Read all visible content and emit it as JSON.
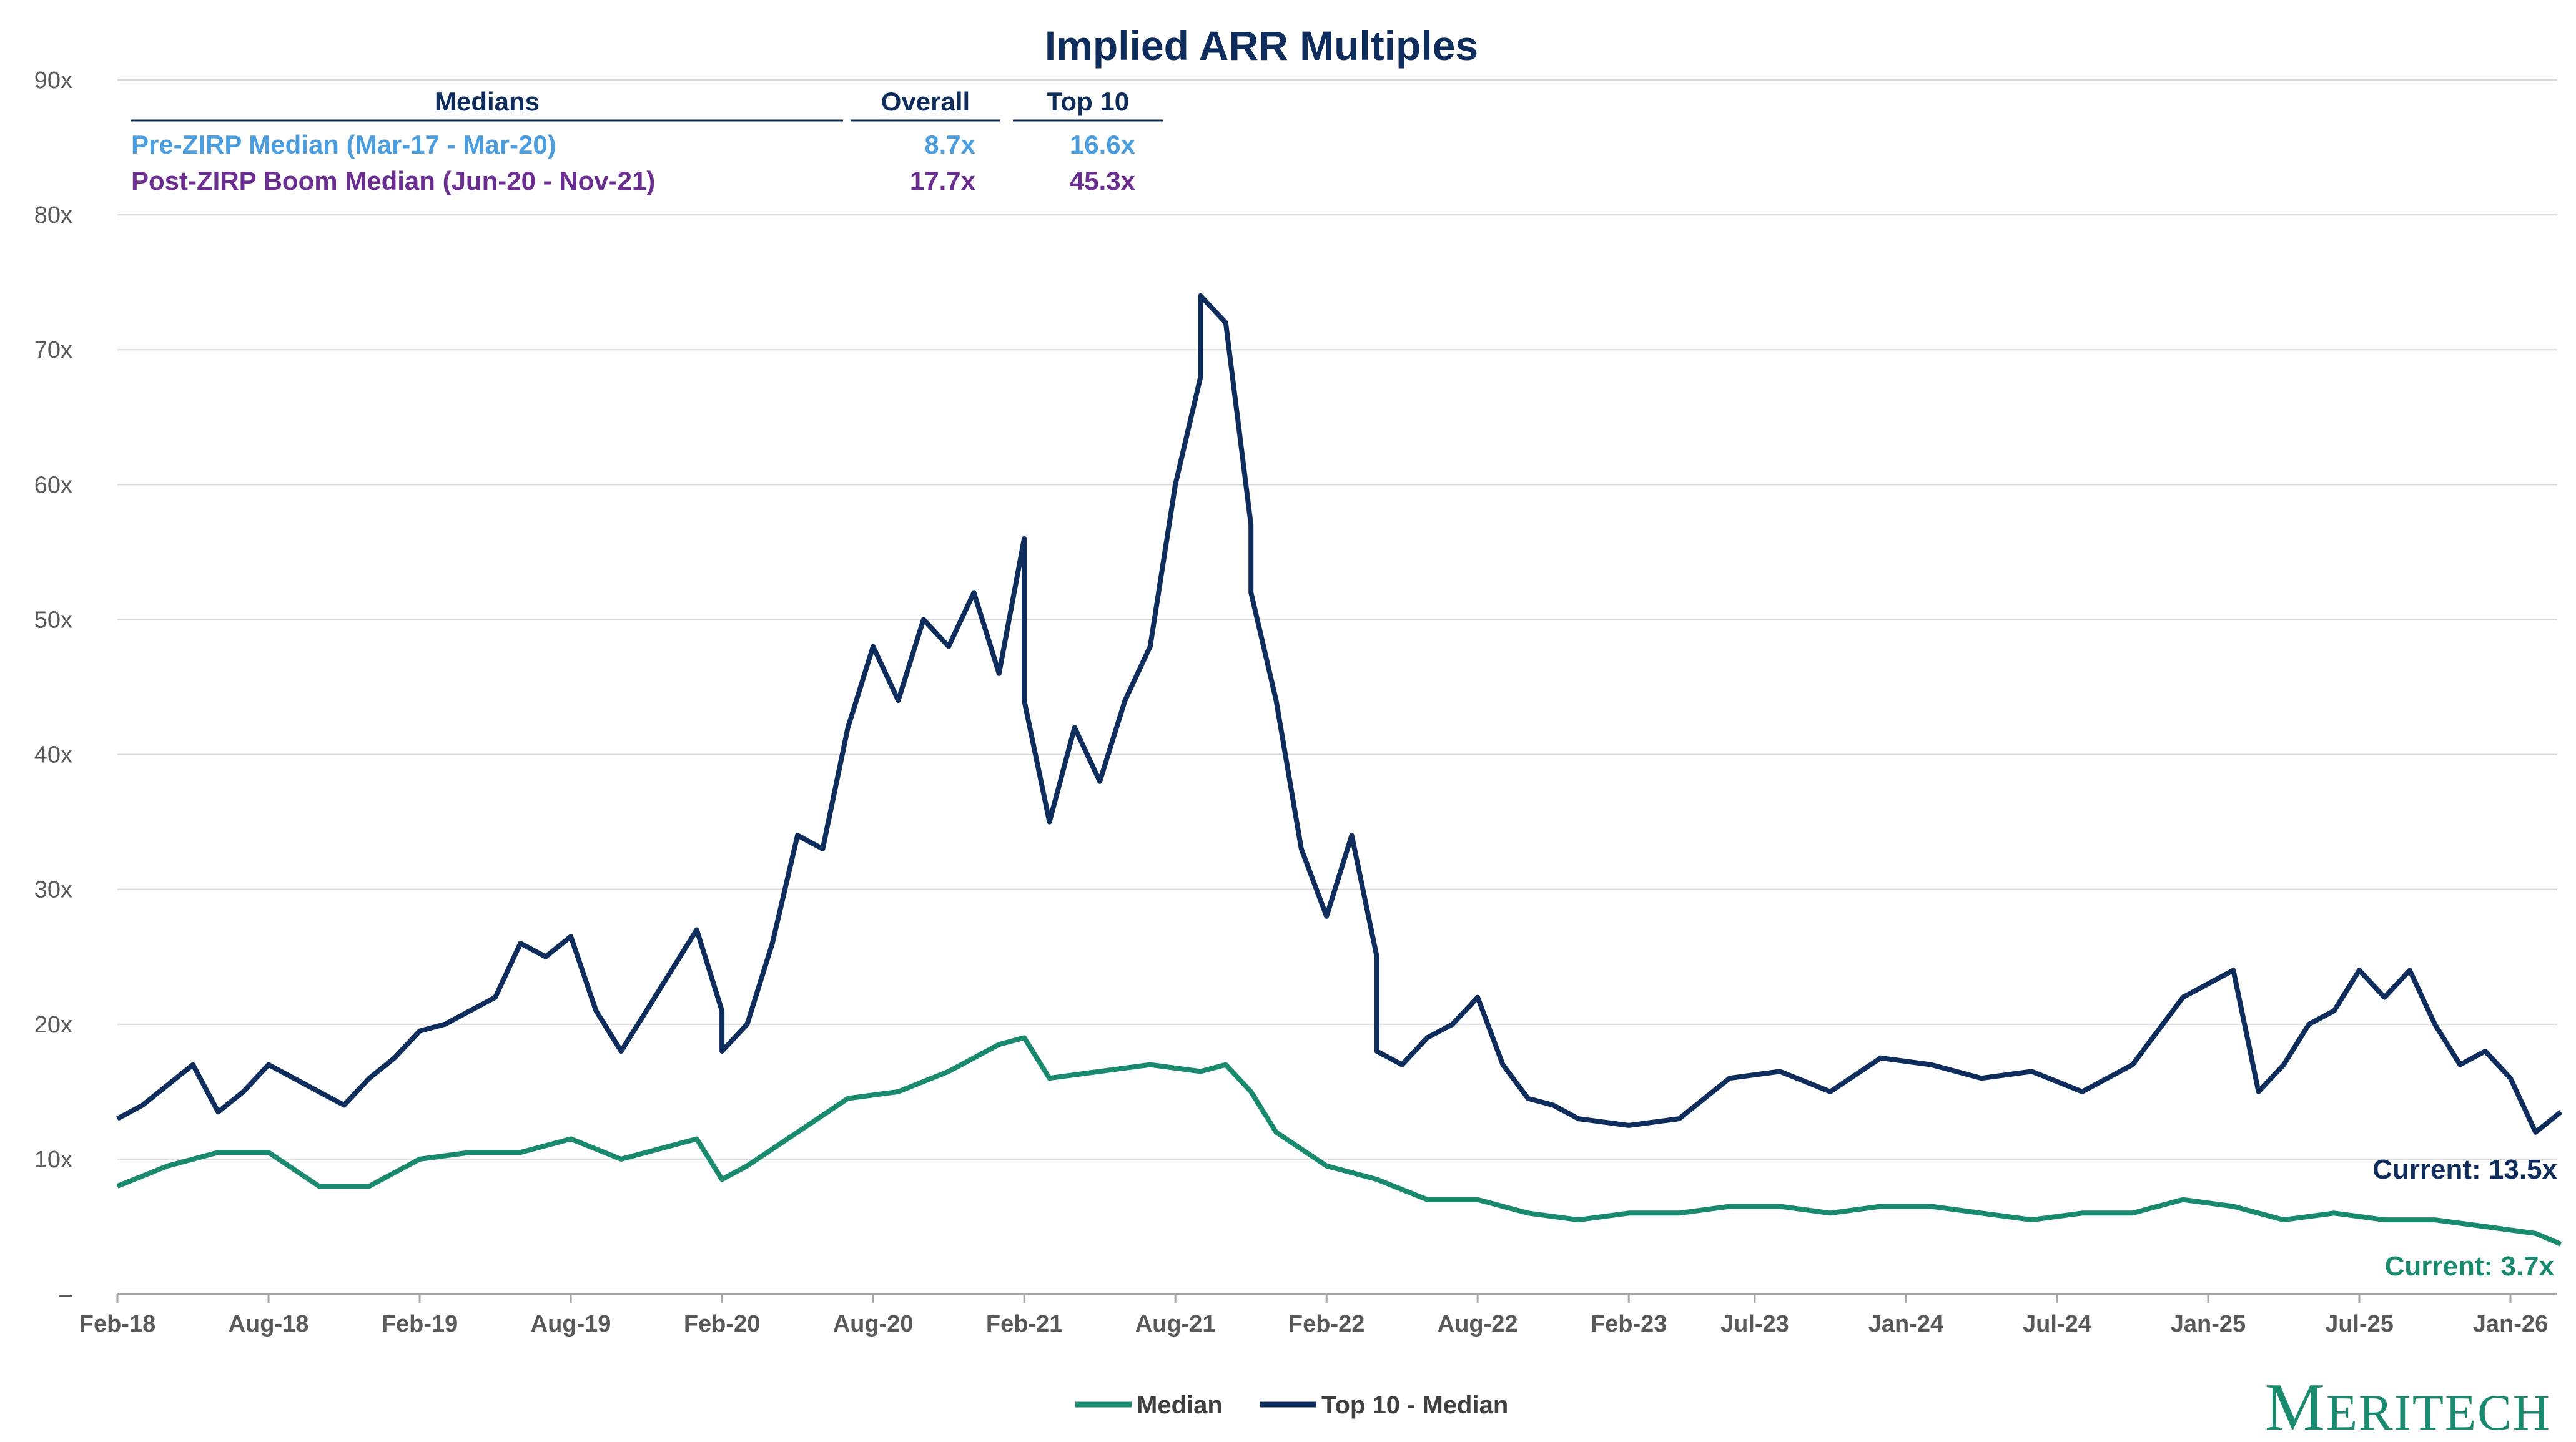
{
  "chart_data": {
    "type": "line",
    "title": "Implied ARR Multiples",
    "y_ticks": [
      "–",
      "10x",
      "20x",
      "30x",
      "40x",
      "50x",
      "60x",
      "70x",
      "80x",
      "90x"
    ],
    "ylim": [
      0,
      90
    ],
    "x_ticks": [
      "Feb-18",
      "Aug-18",
      "Feb-19",
      "Aug-19",
      "Feb-20",
      "Aug-20",
      "Feb-21",
      "Aug-21",
      "Feb-22",
      "Aug-22",
      "Feb-23",
      "Jul-23",
      "Jan-24",
      "Jul-24",
      "Jan-25",
      "Jul-25",
      "Jan-26"
    ],
    "grid": "horizontal",
    "legend_position": "bottom-center",
    "series": [
      {
        "name": "Median",
        "color": "#1a8a6e",
        "x": [
          "2018-02",
          "2018-04",
          "2018-06",
          "2018-08",
          "2018-10",
          "2018-12",
          "2019-02",
          "2019-04",
          "2019-06",
          "2019-08",
          "2019-10",
          "2019-12",
          "2020-01",
          "2020-02",
          "2020-03",
          "2020-05",
          "2020-07",
          "2020-09",
          "2020-11",
          "2021-01",
          "2021-02",
          "2021-03",
          "2021-05",
          "2021-07",
          "2021-09",
          "2021-10",
          "2021-11",
          "2021-12",
          "2022-02",
          "2022-04",
          "2022-06",
          "2022-08",
          "2022-10",
          "2022-12",
          "2023-02",
          "2023-04",
          "2023-06",
          "2023-08",
          "2023-10",
          "2023-12",
          "2024-02",
          "2024-04",
          "2024-06",
          "2024-08",
          "2024-10",
          "2024-12",
          "2025-02",
          "2025-04",
          "2025-06",
          "2025-08",
          "2025-10",
          "2025-12",
          "2026-02",
          "2026-03"
        ],
        "values": [
          8.0,
          9.5,
          10.5,
          10.5,
          8.0,
          8.0,
          10.0,
          10.5,
          10.5,
          11.5,
          10.0,
          11.0,
          11.5,
          8.5,
          9.5,
          12.0,
          14.5,
          15.0,
          16.5,
          18.5,
          19.0,
          16.0,
          16.5,
          17.0,
          16.5,
          17.0,
          15.0,
          12.0,
          9.5,
          8.5,
          7.0,
          7.0,
          6.0,
          5.5,
          6.0,
          6.0,
          6.5,
          6.5,
          6.0,
          6.5,
          6.5,
          6.0,
          5.5,
          6.0,
          6.0,
          7.0,
          6.5,
          5.5,
          6.0,
          5.5,
          5.5,
          5.0,
          4.5,
          3.7
        ]
      },
      {
        "name": "Top 10 - Median",
        "color": "#0e2d5c",
        "x": [
          "2018-02",
          "2018-03",
          "2018-05",
          "2018-06",
          "2018-07",
          "2018-08",
          "2018-09",
          "2018-10",
          "2018-11",
          "2018-12",
          "2019-01",
          "2019-02",
          "2019-03",
          "2019-05",
          "2019-06",
          "2019-07",
          "2019-08",
          "2019-09",
          "2019-10",
          "2019-11",
          "2019-12",
          "2020-01",
          "2020-02",
          "2020-02",
          "2020-03",
          "2020-04",
          "2020-05",
          "2020-06",
          "2020-07",
          "2020-08",
          "2020-09",
          "2020-10",
          "2020-11",
          "2020-12",
          "2021-01",
          "2021-02",
          "2021-02",
          "2021-03",
          "2021-04",
          "2021-05",
          "2021-06",
          "2021-07",
          "2021-08",
          "2021-09",
          "2021-09",
          "2021-10",
          "2021-11",
          "2021-11",
          "2021-12",
          "2022-01",
          "2022-02",
          "2022-03",
          "2022-04",
          "2022-04",
          "2022-05",
          "2022-06",
          "2022-07",
          "2022-08",
          "2022-09",
          "2022-10",
          "2022-11",
          "2022-12",
          "2023-02",
          "2023-04",
          "2023-06",
          "2023-08",
          "2023-10",
          "2023-12",
          "2024-02",
          "2024-04",
          "2024-06",
          "2024-08",
          "2024-10",
          "2024-12",
          "2025-02",
          "2025-03",
          "2025-04",
          "2025-05",
          "2025-06",
          "2025-07",
          "2025-08",
          "2025-09",
          "2025-10",
          "2025-11",
          "2025-12",
          "2026-01",
          "2026-02",
          "2026-03"
        ],
        "values": [
          13.0,
          14.0,
          17.0,
          13.5,
          15.0,
          17.0,
          16.0,
          15.0,
          14.0,
          16.0,
          17.5,
          19.5,
          20.0,
          22.0,
          26.0,
          25.0,
          26.5,
          21.0,
          18.0,
          21.0,
          24.0,
          27.0,
          21.0,
          18.0,
          20.0,
          26.0,
          34.0,
          33.0,
          42.0,
          48.0,
          44.0,
          50.0,
          48.0,
          52.0,
          46.0,
          56.0,
          44.0,
          35.0,
          42.0,
          38.0,
          44.0,
          48.0,
          60.0,
          68.0,
          74.0,
          72.0,
          57.0,
          52.0,
          44.0,
          33.0,
          28.0,
          34.0,
          25.0,
          18.0,
          17.0,
          19.0,
          20.0,
          22.0,
          17.0,
          14.5,
          14.0,
          13.0,
          12.5,
          13.0,
          16.0,
          16.5,
          15.0,
          17.5,
          17.0,
          16.0,
          16.5,
          15.0,
          17.0,
          22.0,
          24.0,
          15.0,
          17.0,
          20.0,
          21.0,
          24.0,
          22.0,
          24.0,
          20.0,
          17.0,
          18.0,
          16.0,
          12.0,
          13.5
        ]
      }
    ],
    "annotations": {
      "top10_current": "Current: 13.5x",
      "median_current": "Current: 3.7x"
    },
    "medians_table": {
      "header": [
        "Medians",
        "Overall",
        "Top 10"
      ],
      "rows": [
        {
          "label": "Pre-ZIRP Median (Mar-17 - Mar-20)",
          "overall": "8.7x",
          "top10": "16.6x",
          "color": "#4a9ee0"
        },
        {
          "label": "Post-ZIRP Boom Median (Jun-20 - Nov-21)",
          "overall": "17.7x",
          "top10": "45.3x",
          "color": "#6c2d91"
        }
      ]
    }
  },
  "brand": {
    "logo_text": "Meritech"
  }
}
